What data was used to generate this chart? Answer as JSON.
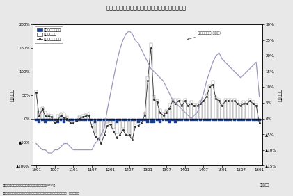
{
  "left_ylabel": "（前年比）",
  "right_ylabel": "（前年比）",
  "xlabel_note": "（年・月）",
  "source_note": "（資料）財務省「国際収支統計」、日本政府観光局（JNTO）",
  "footnote": "（注）訪日外国人消費額は旅行収支の受取額、一人当たり消費額＝旅行収支受取額Ｗ訪日外国人数",
  "annotation": "円/ドルレート(右目盛)",
  "left_ylim": [
    -100,
    200
  ],
  "right_ylim": [
    -15,
    30
  ],
  "left_yticks": [
    -100,
    -50,
    0,
    50,
    100,
    150,
    200
  ],
  "left_yticklabels": [
    "➕100%",
    "❔50%",
    "0%",
    "50%",
    "100%",
    "150%",
    "200%"
  ],
  "right_yticks": [
    -15,
    -10,
    -5,
    0,
    5,
    10,
    15,
    20,
    25,
    30
  ],
  "right_yticklabels": [
    "❔15%",
    "❔10%",
    "❔5%",
    "0%",
    "5%",
    "10%",
    "15%",
    "20%",
    "25%",
    "30%"
  ],
  "xtick_labels": [
    "1001",
    "1007",
    "1101",
    "1107",
    "1201",
    "1207",
    "1301",
    "1307",
    "1401",
    "1407",
    "1501",
    "1507",
    "1601"
  ],
  "bg_color": "#e8e8e8",
  "plot_bg_color": "#ffffff",
  "bar_visitor_color": "#ffffff",
  "bar_per_capita_color": "#1a3f8f",
  "line_consumption_color": "#333333",
  "line_exchange_color": "#9999bb",
  "x_positions": [
    0,
    6,
    12,
    18,
    24,
    30,
    36,
    42,
    48,
    54,
    60,
    66,
    72
  ],
  "n_bars": 73,
  "visitor_yoy": [
    60,
    15,
    25,
    15,
    10,
    8,
    -5,
    8,
    12,
    12,
    5,
    -5,
    -5,
    0,
    5,
    8,
    10,
    12,
    -12,
    -30,
    -40,
    -50,
    -30,
    -10,
    -8,
    -22,
    -32,
    -32,
    -20,
    -32,
    -32,
    -42,
    -12,
    -5,
    -5,
    12,
    90,
    160,
    50,
    40,
    20,
    12,
    18,
    32,
    42,
    42,
    42,
    37,
    42,
    32,
    37,
    32,
    32,
    37,
    42,
    52,
    72,
    80,
    47,
    42,
    32,
    42,
    42,
    42,
    42,
    37,
    32,
    37,
    37,
    42,
    37,
    32,
    -5
  ],
  "per_capita_yoy": [
    -5,
    -10,
    -5,
    -10,
    -5,
    -5,
    -5,
    -10,
    -5,
    -10,
    -5,
    -5,
    -5,
    -5,
    -5,
    -5,
    -5,
    -5,
    -5,
    -10,
    -5,
    -5,
    -5,
    -5,
    -5,
    -5,
    -10,
    -5,
    -5,
    -5,
    -5,
    -5,
    -5,
    -10,
    -5,
    -5,
    -10,
    -10,
    -10,
    -5,
    -10,
    -5,
    -5,
    -10,
    -5,
    -10,
    -5,
    -5,
    -5,
    -5,
    -5,
    -5,
    -5,
    -5,
    -5,
    -5,
    -5,
    -5,
    -5,
    -5,
    -5,
    -5,
    -5,
    -5,
    -5,
    -5,
    -5,
    -5,
    -5,
    -5,
    -5,
    -5,
    -5
  ],
  "consumption_yoy": [
    55,
    5,
    20,
    5,
    5,
    3,
    -10,
    -3,
    7,
    2,
    0,
    -10,
    -10,
    -5,
    0,
    3,
    5,
    7,
    -17,
    -38,
    -43,
    -53,
    -35,
    -15,
    -13,
    -27,
    -40,
    -35,
    -25,
    -35,
    -35,
    -45,
    -17,
    -15,
    -10,
    7,
    80,
    150,
    40,
    35,
    12,
    7,
    13,
    22,
    37,
    32,
    37,
    27,
    37,
    27,
    32,
    27,
    27,
    32,
    37,
    47,
    67,
    72,
    42,
    37,
    27,
    37,
    37,
    37,
    37,
    32,
    27,
    32,
    32,
    37,
    32,
    27,
    -10
  ],
  "exchange_rate_right": [
    -8,
    -9,
    -10,
    -10,
    -11,
    -11,
    -10,
    -10,
    -9,
    -8,
    -8,
    -9,
    -10,
    -10,
    -10,
    -10,
    -10,
    -10,
    -10,
    -8,
    -7,
    -5,
    -3,
    3,
    8,
    13,
    18,
    22,
    25,
    27,
    28,
    27,
    25,
    24,
    22,
    20,
    18,
    16,
    15,
    14,
    13,
    12,
    10,
    8,
    6,
    5,
    4,
    3,
    2,
    1,
    0,
    1,
    2,
    5,
    8,
    12,
    15,
    18,
    20,
    21,
    19,
    18,
    17,
    16,
    15,
    14,
    13,
    14,
    15,
    16,
    17,
    18,
    7
  ]
}
